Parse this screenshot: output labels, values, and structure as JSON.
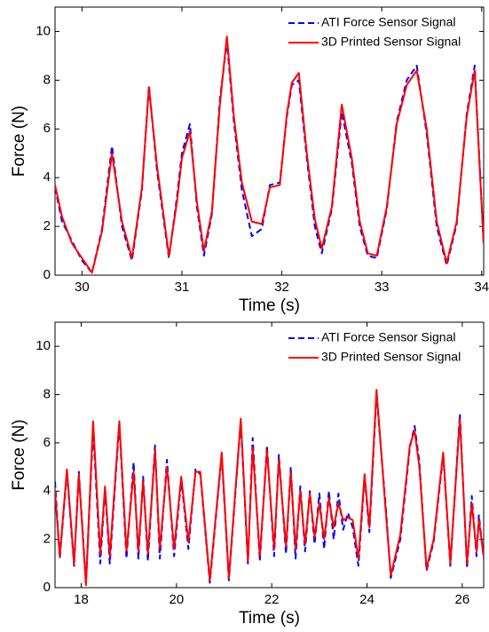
{
  "chart_data": [
    {
      "type": "line",
      "xlabel": "Time (s)",
      "ylabel": "Force (N)",
      "x": [
        29.73,
        29.8,
        29.9,
        30.0,
        30.1,
        30.2,
        30.3,
        30.4,
        30.5,
        30.6,
        30.67,
        30.75,
        30.87,
        30.95,
        31.0,
        31.08,
        31.15,
        31.22,
        31.3,
        31.38,
        31.45,
        31.52,
        31.6,
        31.7,
        31.8,
        31.88,
        31.98,
        32.05,
        32.1,
        32.17,
        32.25,
        32.33,
        32.4,
        32.5,
        32.6,
        32.7,
        32.78,
        32.86,
        32.95,
        33.05,
        33.15,
        33.25,
        33.35,
        33.45,
        33.55,
        33.65,
        33.75,
        33.85,
        33.93,
        34.02
      ],
      "series": [
        {
          "name": "ATI Force Sensor Signal",
          "color": "#0000ff",
          "linestyle": "dashed",
          "values": [
            3.6,
            2.2,
            1.4,
            0.6,
            0.1,
            1.9,
            5.3,
            2.0,
            0.6,
            3.5,
            7.8,
            4.3,
            0.7,
            3.2,
            5.0,
            6.2,
            2.8,
            0.8,
            2.5,
            7.2,
            9.6,
            6.3,
            3.5,
            1.6,
            1.9,
            3.7,
            3.8,
            6.5,
            7.8,
            8.0,
            4.8,
            2.0,
            0.9,
            2.7,
            6.7,
            4.6,
            2.0,
            0.8,
            0.7,
            2.7,
            6.3,
            8.0,
            8.6,
            5.8,
            2.0,
            0.4,
            2.1,
            6.6,
            8.6,
            1.2
          ]
        },
        {
          "name": "3D Printed Sensor Signal",
          "color": "#ff0000",
          "linestyle": "solid",
          "values": [
            3.7,
            2.4,
            1.3,
            0.7,
            0.1,
            1.8,
            5.0,
            2.2,
            0.7,
            3.6,
            7.7,
            4.5,
            0.8,
            3.0,
            4.8,
            5.9,
            3.0,
            1.0,
            2.6,
            7.0,
            9.8,
            6.5,
            3.8,
            2.2,
            2.1,
            3.6,
            3.7,
            6.6,
            7.9,
            8.3,
            5.0,
            2.3,
            1.1,
            2.8,
            7.0,
            4.8,
            2.2,
            0.9,
            0.8,
            2.8,
            6.2,
            7.8,
            8.4,
            6.0,
            2.2,
            0.5,
            2.2,
            6.5,
            8.4,
            1.3
          ]
        }
      ],
      "xlim": [
        29.73,
        34.02
      ],
      "ylim": [
        0,
        11
      ],
      "xticks": [
        30,
        31,
        32,
        33,
        34
      ],
      "yticks": [
        0,
        2,
        4,
        6,
        8,
        10
      ],
      "legend": "upper right"
    },
    {
      "type": "line",
      "xlabel": "Time (s)",
      "ylabel": "Force (N)",
      "x": [
        17.45,
        17.55,
        17.7,
        17.85,
        17.95,
        18.1,
        18.25,
        18.4,
        18.5,
        18.6,
        18.8,
        18.95,
        19.1,
        19.2,
        19.3,
        19.4,
        19.55,
        19.65,
        19.8,
        19.95,
        20.1,
        20.25,
        20.4,
        20.5,
        20.7,
        20.95,
        21.1,
        21.35,
        21.5,
        21.6,
        21.75,
        21.9,
        22.05,
        22.15,
        22.3,
        22.4,
        22.5,
        22.6,
        22.7,
        22.8,
        22.9,
        23.0,
        23.1,
        23.2,
        23.3,
        23.4,
        23.5,
        23.6,
        23.7,
        23.82,
        23.95,
        24.05,
        24.2,
        24.4,
        24.5,
        24.7,
        24.9,
        25.0,
        25.1,
        25.25,
        25.4,
        25.6,
        25.75,
        25.95,
        26.1,
        26.2,
        26.3,
        26.35,
        26.45
      ],
      "series": [
        {
          "name": "ATI Force Sensor Signal",
          "color": "#0000ff",
          "linestyle": "dashed",
          "values": [
            4.4,
            1.2,
            4.8,
            0.9,
            4.8,
            0.2,
            6.6,
            1.0,
            4.1,
            1.0,
            6.8,
            1.2,
            5.2,
            1.2,
            4.6,
            1.1,
            5.9,
            1.2,
            5.3,
            1.3,
            4.5,
            1.6,
            4.9,
            4.7,
            0.2,
            5.5,
            0.3,
            6.9,
            1.0,
            6.2,
            1.1,
            5.9,
            1.3,
            5.5,
            1.4,
            5.0,
            1.2,
            4.2,
            1.5,
            4.0,
            1.8,
            3.9,
            1.6,
            4.0,
            2.0,
            3.9,
            2.4,
            3.1,
            2.5,
            0.9,
            4.6,
            2.3,
            8.0,
            3.2,
            0.4,
            2.0,
            5.8,
            6.7,
            5.2,
            0.7,
            1.9,
            5.5,
            0.9,
            7.2,
            0.8,
            3.8,
            1.3,
            3.0,
            1.2
          ]
        },
        {
          "name": "3D Printed Sensor Signal",
          "color": "#ff0000",
          "linestyle": "solid",
          "values": [
            4.0,
            1.3,
            4.9,
            1.0,
            4.7,
            0.1,
            6.9,
            1.4,
            4.2,
            1.3,
            6.9,
            1.5,
            4.8,
            1.5,
            4.4,
            1.4,
            5.7,
            1.6,
            5.0,
            1.6,
            4.6,
            1.9,
            4.8,
            4.8,
            0.3,
            5.6,
            0.4,
            7.0,
            1.1,
            5.8,
            1.3,
            5.7,
            1.6,
            5.3,
            1.7,
            4.8,
            1.6,
            4.0,
            1.8,
            3.9,
            2.1,
            3.5,
            2.0,
            3.7,
            2.5,
            3.5,
            2.8,
            2.9,
            2.8,
            1.2,
            4.7,
            2.5,
            8.2,
            3.0,
            0.5,
            2.2,
            5.9,
            6.5,
            5.0,
            0.8,
            2.0,
            5.6,
            1.0,
            7.0,
            1.0,
            3.5,
            1.5,
            2.8,
            1.3
          ]
        }
      ],
      "xlim": [
        17.45,
        26.45
      ],
      "ylim": [
        0,
        11
      ],
      "xticks": [
        18,
        20,
        22,
        24,
        26
      ],
      "yticks": [
        0,
        2,
        4,
        6,
        8,
        10
      ],
      "legend": "upper right"
    }
  ]
}
